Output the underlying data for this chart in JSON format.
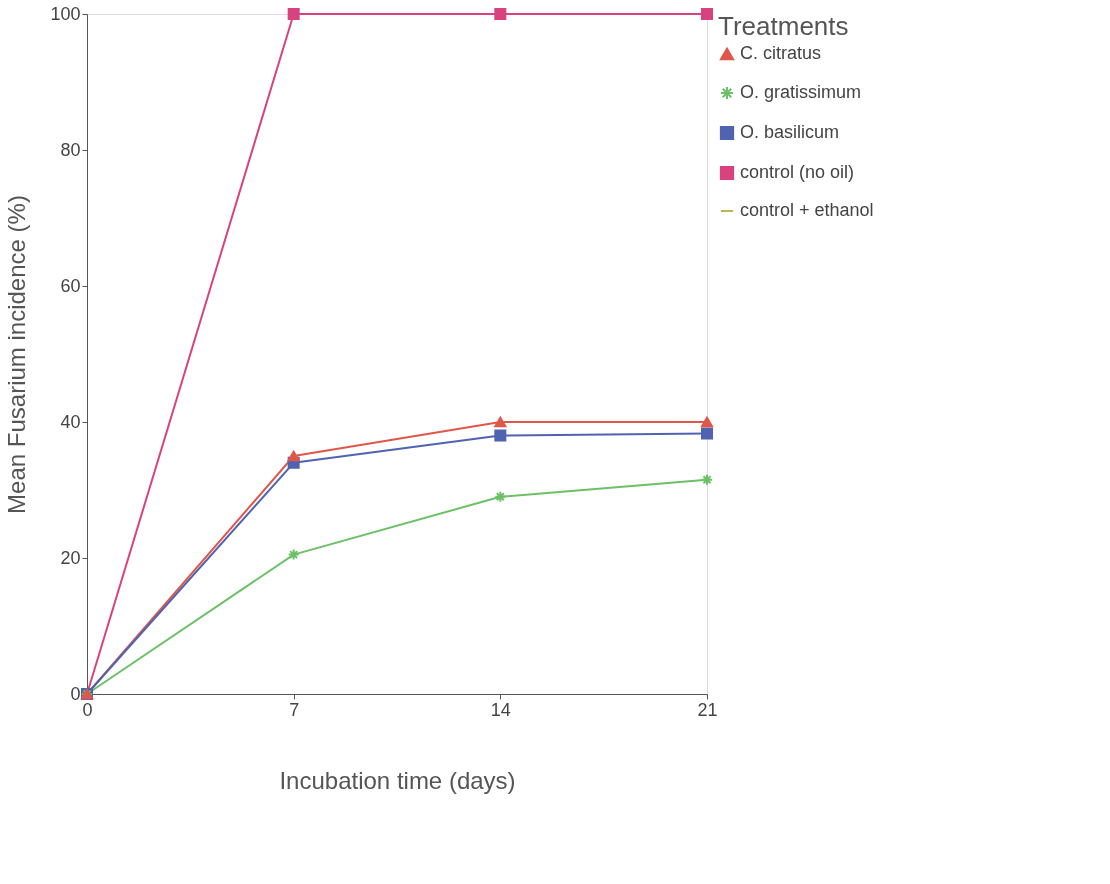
{
  "chart_data": {
    "type": "line",
    "xlabel": "Incubation time (days)",
    "ylabel": "Mean Fusarium incidence (%)",
    "legend_title": "Treatments",
    "legend": "right",
    "grid": false,
    "x": [
      0,
      7,
      14,
      21
    ],
    "xlim": [
      0,
      21
    ],
    "xticks": [
      0,
      7,
      14,
      21
    ],
    "ylim": [
      0,
      100
    ],
    "yticks": [
      0,
      20,
      40,
      60,
      80,
      100
    ],
    "series": [
      {
        "name": "C. citratus",
        "color": "#e0574a",
        "marker": "triangle",
        "values": [
          0,
          35,
          40,
          40
        ]
      },
      {
        "name": "O. gratissimum",
        "color": "#6cc066",
        "marker": "cross",
        "values": [
          0,
          20.5,
          29,
          31.5
        ]
      },
      {
        "name": "O. basilicum",
        "color": "#4f63b0",
        "marker": "square",
        "values": [
          0,
          34,
          38,
          38.3
        ]
      },
      {
        "name": "control (no oil)",
        "color": "#d8437f",
        "marker": "square",
        "values": [
          0,
          100,
          100,
          100
        ]
      },
      {
        "name": "control + ethanol",
        "color": "#c2b450",
        "marker": "none",
        "values": [
          null,
          null,
          null,
          null
        ]
      }
    ]
  }
}
